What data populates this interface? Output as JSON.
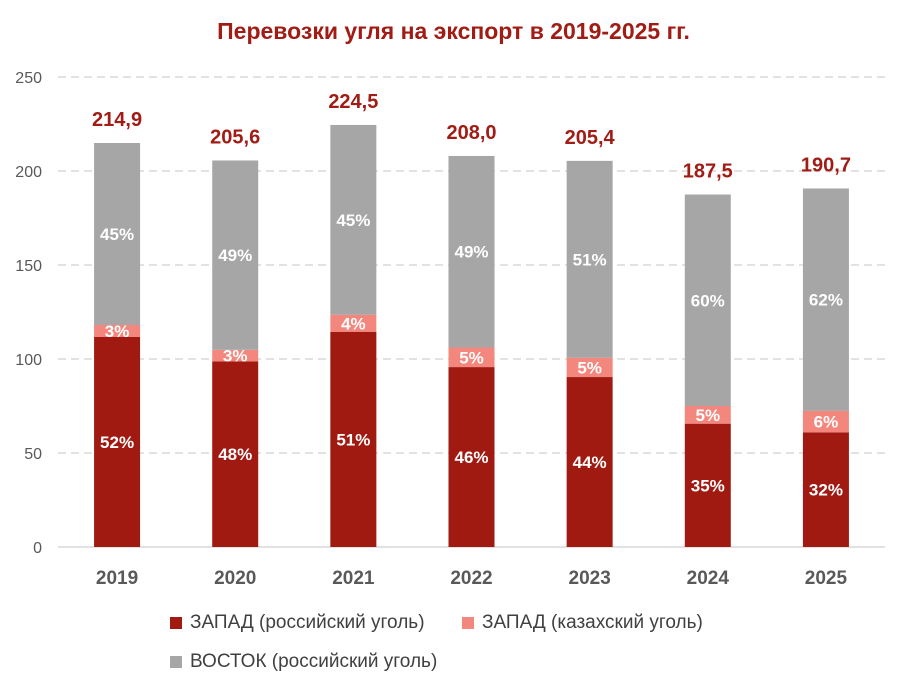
{
  "chart_data": {
    "type": "bar",
    "stacked": true,
    "title": "Перевозки угля на экспорт в 2019-2025 гг.",
    "categories": [
      "2019",
      "2020",
      "2021",
      "2022",
      "2023",
      "2024",
      "2025"
    ],
    "totals": [
      "214,9",
      "205,6",
      "224,5",
      "208,0",
      "205,4",
      "187,5",
      "190,7"
    ],
    "ylim": [
      0,
      250
    ],
    "yticks": [
      0,
      50,
      100,
      150,
      200,
      250
    ],
    "grid": true,
    "legend_position": "bottom",
    "series": [
      {
        "name": "ЗАПАД (российский уголь)",
        "color": "#A11A12",
        "values": [
          111.7,
          98.7,
          114.5,
          95.7,
          90.4,
          65.6,
          61.0
        ],
        "labels": [
          "52%",
          "48%",
          "51%",
          "46%",
          "44%",
          "35%",
          "32%"
        ]
      },
      {
        "name": "ЗАПАД (казахский уголь)",
        "color": "#F4877D",
        "values": [
          6.4,
          6.2,
          9.0,
          10.4,
          10.3,
          9.4,
          11.4
        ],
        "labels": [
          "3%",
          "3%",
          "4%",
          "5%",
          "5%",
          "5%",
          "6%"
        ]
      },
      {
        "name": "ВОСТОК (российский уголь)",
        "color": "#A6A6A6",
        "values": [
          96.8,
          100.7,
          101.0,
          101.9,
          104.7,
          112.5,
          118.3
        ],
        "labels": [
          "45%",
          "49%",
          "45%",
          "49%",
          "51%",
          "60%",
          "62%"
        ]
      }
    ],
    "total_label_color": "#A01C14"
  }
}
